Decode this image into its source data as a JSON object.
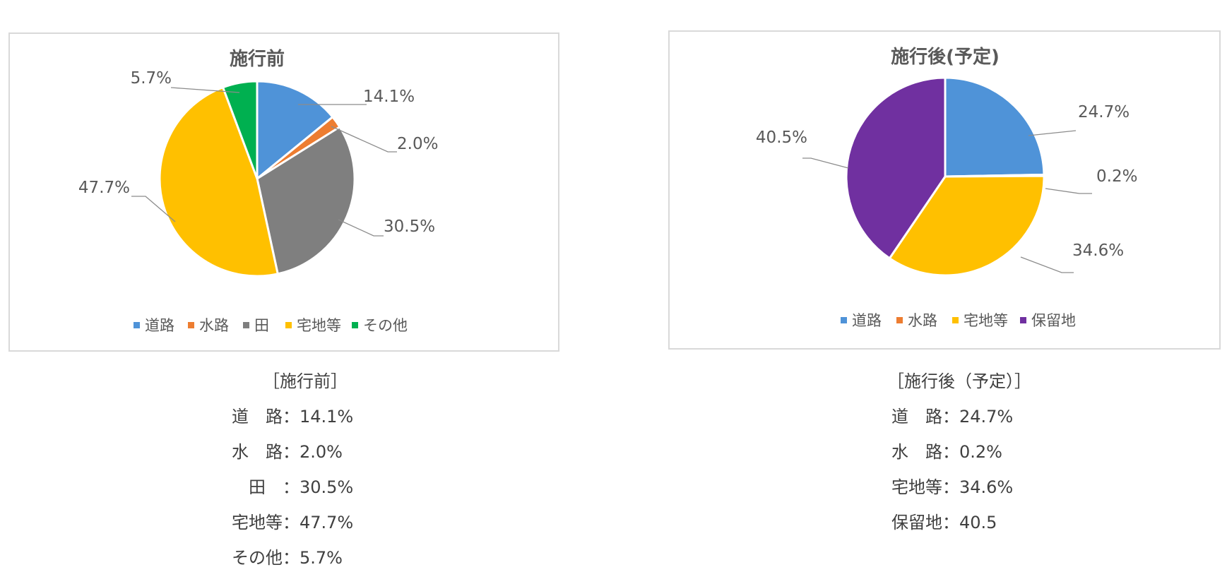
{
  "chart_data": [
    {
      "type": "pie",
      "title": "施行前",
      "categories": [
        "道路",
        "水路",
        "田",
        "宅地等",
        "その他"
      ],
      "values": [
        14.1,
        2.0,
        30.5,
        47.7,
        5.7
      ],
      "data_labels": [
        "14.1%",
        "2.0%",
        "30.5%",
        "47.7%",
        "5.7%"
      ],
      "colors": [
        "#4f93d8",
        "#ed7d31",
        "#7f7f7f",
        "#ffc000",
        "#00b050"
      ],
      "legend": [
        "道路",
        "水路",
        "田",
        "宅地等",
        "その他"
      ],
      "legend_position": "bottom"
    },
    {
      "type": "pie",
      "title": "施行後(予定)",
      "categories": [
        "道路",
        "水路",
        "宅地等",
        "保留地"
      ],
      "values": [
        24.7,
        0.2,
        34.6,
        40.5
      ],
      "data_labels": [
        "24.7%",
        "0.2%",
        "34.6%",
        "40.5%"
      ],
      "colors": [
        "#4f93d8",
        "#ed7d31",
        "#ffc000",
        "#7030a0"
      ],
      "legend": [
        "道路",
        "水路",
        "宅地等",
        "保留地"
      ],
      "legend_position": "bottom"
    }
  ],
  "summaries": {
    "before": {
      "heading": "［施行前］",
      "rows": [
        "道　路：14.1%",
        "水　路：2.0%",
        "　田　：30.5%",
        "宅地等：47.7%",
        "その他：5.7%"
      ]
    },
    "after": {
      "heading": "［施行後（予定）］",
      "rows": [
        "道　路：24.7%",
        "水　路：0.2%",
        "宅地等：34.6%",
        "保留地：40.5"
      ]
    }
  }
}
